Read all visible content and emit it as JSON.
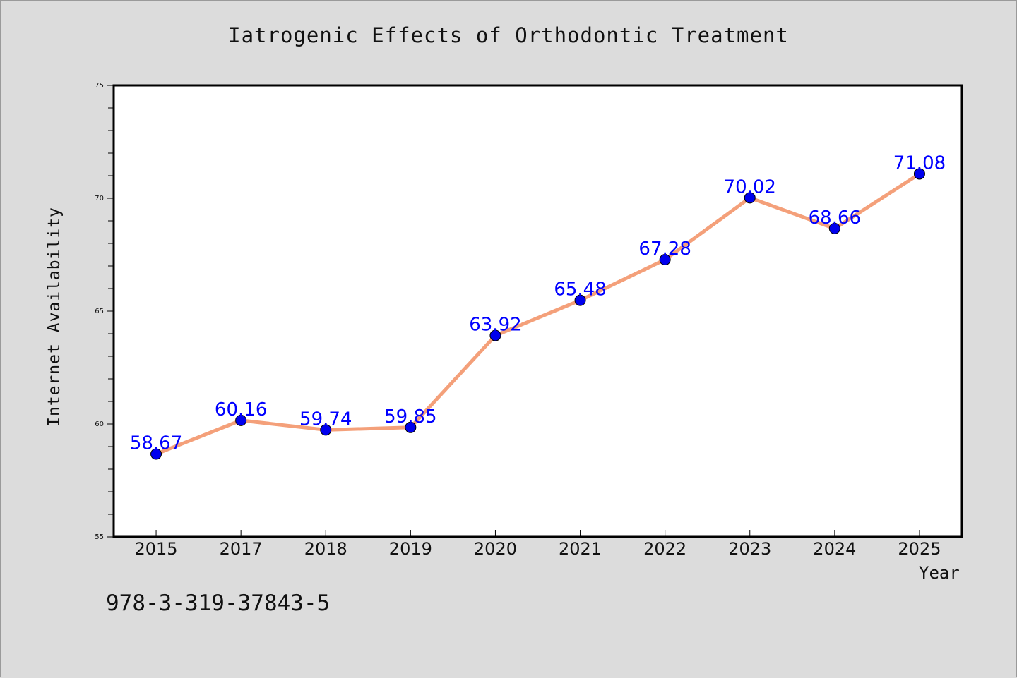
{
  "colors": {
    "line": "#f4a07a",
    "marker": "#0000ee",
    "label": "#0000ff",
    "background": "#dcdcdc",
    "plot_background": "#ffffff"
  },
  "footer": {
    "isbn": "978-3-319-37843-5"
  },
  "chart_data": {
    "type": "line",
    "title": "Iatrogenic Effects of Orthodontic Treatment",
    "xlabel": "Year",
    "ylabel": "Internet Availability",
    "categories": [
      "2015",
      "2017",
      "2018",
      "2019",
      "2020",
      "2021",
      "2022",
      "2023",
      "2024",
      "2025"
    ],
    "series": [
      {
        "values": [
          58.67,
          60.16,
          59.74,
          59.85,
          63.92,
          65.48,
          67.28,
          70.02,
          68.66,
          71.08
        ]
      }
    ],
    "data_labels": [
      "58.67",
      "60.16",
      "59.74",
      "59.85",
      "63.92",
      "65.48",
      "67.28",
      "70.02",
      "68.66",
      "71.08"
    ],
    "ylim": [
      55,
      75
    ],
    "y_major_ticks": [
      55,
      60,
      65,
      70,
      75
    ],
    "y_minor_step": 1,
    "grid": false,
    "legend": "none"
  }
}
